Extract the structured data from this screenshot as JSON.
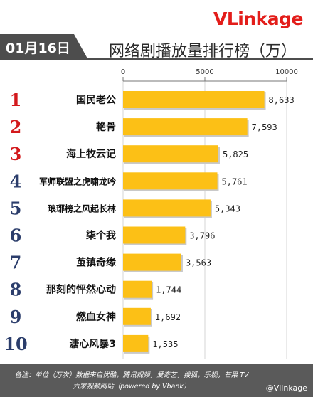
{
  "brand": {
    "v": "V",
    "link": "Link",
    "age": "age"
  },
  "date": "01月16日",
  "title": "网络剧播放量排行榜（万）",
  "chart_data": {
    "type": "bar",
    "orientation": "horizontal",
    "title": "网络剧播放量排行榜（万）",
    "xlim": [
      0,
      10000
    ],
    "ticks": [
      0,
      5000,
      10000
    ],
    "tick_labels": [
      "0",
      "5000",
      "10000"
    ],
    "grid": true,
    "ranks": [
      "1",
      "2",
      "3",
      "4",
      "5",
      "6",
      "7",
      "8",
      "9",
      "10"
    ],
    "categories": [
      "国民老公",
      "艳骨",
      "海上牧云记",
      "军师联盟之虎啸龙吟",
      "琅琊榜之风起长林",
      "柒个我",
      "茧镇奇缘",
      "那刻的怦然心动",
      "燃血女神",
      "溏心风暴3"
    ],
    "values": [
      8633,
      7593,
      5825,
      5761,
      5343,
      3796,
      3563,
      1744,
      1692,
      1535
    ],
    "value_labels": [
      "8,633",
      "7,593",
      "5,825",
      "5,761",
      "5,343",
      "3,796",
      "3,563",
      "1,744",
      "1,692",
      "1,535"
    ],
    "bar_color": "#fcc016",
    "rank_colors": {
      "top3": "#d3191c",
      "rest": "#2b3d6b"
    }
  },
  "footer": {
    "line1": "备注：单位（万次）数据来自优酷，腾讯视频，爱奇艺，搜狐，乐视，芒果 TV",
    "line2": "六家视频网站（powered by Vbank）",
    "watermark": "@Vlinkage"
  },
  "colors": {
    "accent": "#e31d1a",
    "tab": "#4d4d4d",
    "footer_bg": "#5a5a5a"
  }
}
